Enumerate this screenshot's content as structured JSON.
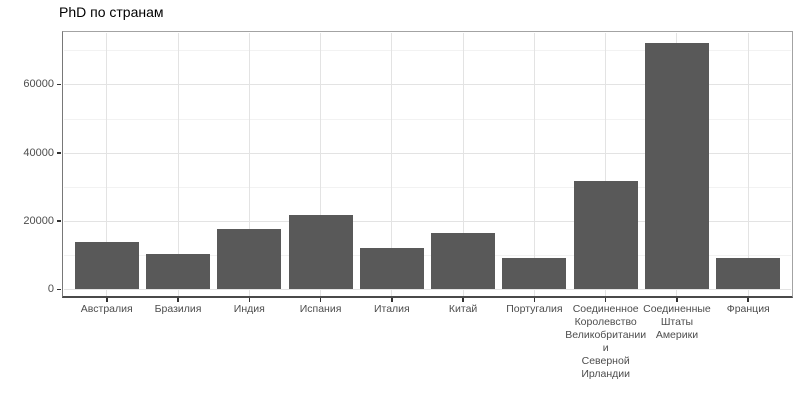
{
  "chart_data": {
    "type": "bar",
    "title": "PhD по странам",
    "categories": [
      "Австралия",
      "Бразилия",
      "Индия",
      "Испания",
      "Италия",
      "Китай",
      "Португалия",
      "Соединенное\nКоролевство\nВеликобритании\nи\nСеверной\nИрландии",
      "Соединенные\nШтаты\nАмерики",
      "Франция"
    ],
    "values": [
      13800,
      10300,
      17500,
      21600,
      11900,
      16400,
      9100,
      31700,
      72000,
      9100
    ],
    "xlabel": "",
    "ylabel": "",
    "y_ticks": [
      0,
      20000,
      40000,
      60000
    ],
    "y_minor_ticks": [
      10000,
      30000,
      50000,
      70000
    ],
    "ylim": [
      0,
      75000
    ],
    "grid": "major and minor horizontal, major vertical at category centers",
    "legend": "none"
  },
  "colors": {
    "background": "#ffffff",
    "bar_fill": "#595959",
    "grid_major": "#e3e3e3",
    "grid_minor": "#f2f2f2",
    "panel_border": "#a3a3a3",
    "axis_line_left": "#787878",
    "axis_line_bottom": "#4a4a4a",
    "tick_mark": "#333333",
    "axis_text": "#4d4d4d",
    "title_text": "#000000"
  }
}
